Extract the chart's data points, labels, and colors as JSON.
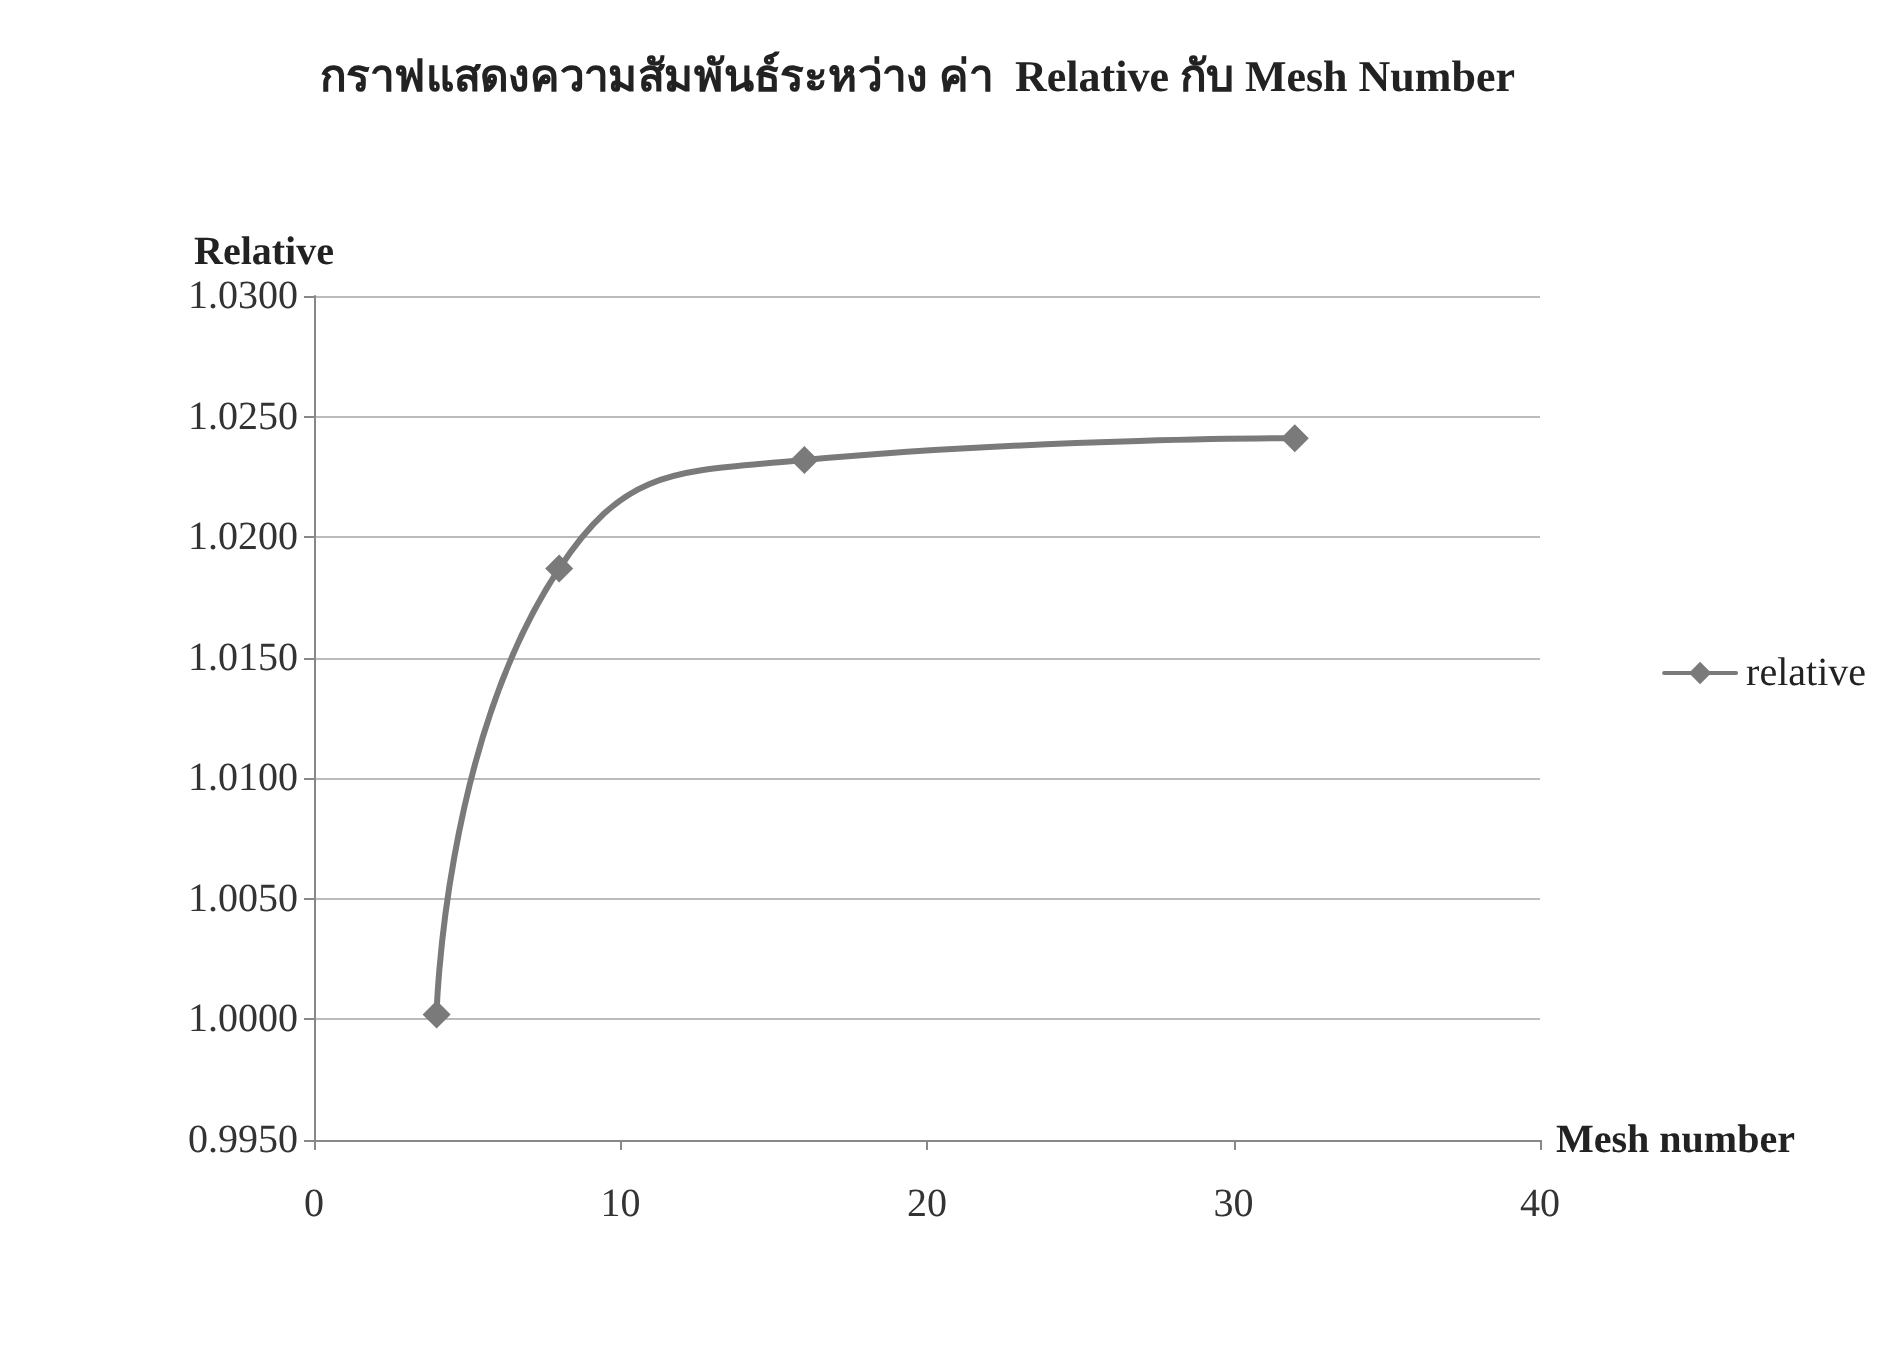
{
  "chart_data": {
    "type": "line",
    "title": "กราฟแสดงความสัมพันธ์ระหว่าง ค่า  Relative กับ Mesh Number",
    "xlabel": "Mesh number",
    "ylabel": "Relative",
    "x": [
      4,
      8,
      16,
      32
    ],
    "series": [
      {
        "name": "relative",
        "color": "#7a7a7a",
        "values": [
          1.0002,
          1.0187,
          1.0232,
          1.0241
        ]
      }
    ],
    "xlim": [
      0,
      40
    ],
    "xticks": [
      0,
      10,
      20,
      30,
      40
    ],
    "ylim": [
      0.995,
      1.03
    ],
    "yticks": [
      {
        "value": 0.995,
        "label": "0.9950"
      },
      {
        "value": 1.0,
        "label": "1.0000"
      },
      {
        "value": 1.005,
        "label": "1.0050"
      },
      {
        "value": 1.01,
        "label": "1.0100"
      },
      {
        "value": 1.015,
        "label": "1.0150"
      },
      {
        "value": 1.02,
        "label": "1.0200"
      },
      {
        "value": 1.025,
        "label": "1.0250"
      },
      {
        "value": 1.03,
        "label": "1.0300"
      }
    ],
    "grid": "y",
    "legend": "right",
    "marker": "diamond",
    "line_style": "solid"
  }
}
